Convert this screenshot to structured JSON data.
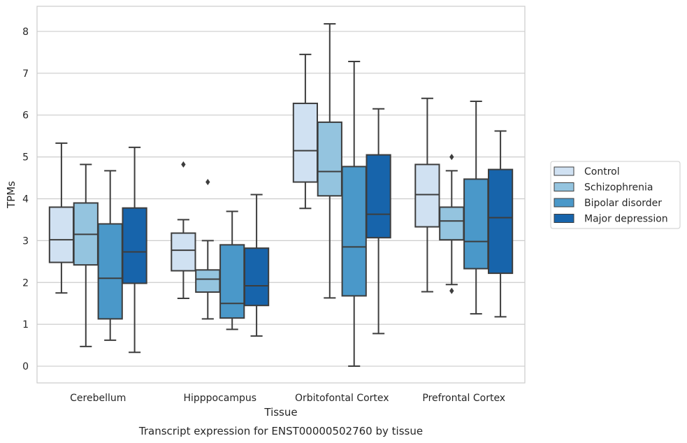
{
  "chart_data": {
    "type": "box",
    "title": "",
    "caption": "Transcript expression for ENST00000502760 by tissue",
    "xlabel": "Tissue",
    "ylabel": "TPMs",
    "ylim": [
      -0.4,
      8.6
    ],
    "yticks": [
      0,
      1,
      2,
      3,
      4,
      5,
      6,
      7,
      8
    ],
    "grid": "horizontal",
    "legend_position": "right",
    "categories": [
      "Cerebellum",
      "Hipppocampus",
      "Orbitofontal Cortex",
      "Prefrontal Cortex"
    ],
    "series": [
      {
        "name": "Control",
        "color": "#d0e1f2",
        "boxes": [
          {
            "whislo": 1.75,
            "q1": 2.48,
            "med": 3.02,
            "q3": 3.8,
            "whishi": 5.33,
            "fliers": []
          },
          {
            "whislo": 1.62,
            "q1": 2.28,
            "med": 2.77,
            "q3": 3.18,
            "whishi": 3.5,
            "fliers": [
              4.82
            ]
          },
          {
            "whislo": 3.77,
            "q1": 4.4,
            "med": 5.15,
            "q3": 6.28,
            "whishi": 7.45,
            "fliers": []
          },
          {
            "whislo": 1.78,
            "q1": 3.33,
            "med": 4.1,
            "q3": 4.82,
            "whishi": 6.4,
            "fliers": []
          }
        ]
      },
      {
        "name": "Schizophrenia",
        "color": "#94c4df",
        "boxes": [
          {
            "whislo": 0.47,
            "q1": 2.42,
            "med": 3.15,
            "q3": 3.9,
            "whishi": 4.82,
            "fliers": []
          },
          {
            "whislo": 1.13,
            "q1": 1.77,
            "med": 2.08,
            "q3": 2.3,
            "whishi": 3.0,
            "fliers": [
              4.4
            ]
          },
          {
            "whislo": 1.63,
            "q1": 4.07,
            "med": 4.65,
            "q3": 5.83,
            "whishi": 8.18,
            "fliers": []
          },
          {
            "whislo": 1.95,
            "q1": 3.02,
            "med": 3.47,
            "q3": 3.8,
            "whishi": 4.67,
            "fliers": [
              5.0,
              1.8
            ]
          }
        ]
      },
      {
        "name": "Bipolar disorder",
        "color": "#4a98c9",
        "boxes": [
          {
            "whislo": 0.62,
            "q1": 1.13,
            "med": 2.1,
            "q3": 3.4,
            "whishi": 4.67,
            "fliers": []
          },
          {
            "whislo": 0.88,
            "q1": 1.15,
            "med": 1.5,
            "q3": 2.9,
            "whishi": 3.7,
            "fliers": []
          },
          {
            "whislo": 0.0,
            "q1": 1.68,
            "med": 2.85,
            "q3": 4.77,
            "whishi": 7.28,
            "fliers": []
          },
          {
            "whislo": 1.25,
            "q1": 2.33,
            "med": 2.98,
            "q3": 4.47,
            "whishi": 6.33,
            "fliers": []
          }
        ]
      },
      {
        "name": "Major depression",
        "color": "#1764ab",
        "boxes": [
          {
            "whislo": 0.33,
            "q1": 1.98,
            "med": 2.73,
            "q3": 3.78,
            "whishi": 5.23,
            "fliers": []
          },
          {
            "whislo": 0.72,
            "q1": 1.45,
            "med": 1.92,
            "q3": 2.82,
            "whishi": 4.1,
            "fliers": []
          },
          {
            "whislo": 0.78,
            "q1": 3.07,
            "med": 3.63,
            "q3": 5.05,
            "whishi": 6.15,
            "fliers": []
          },
          {
            "whislo": 1.18,
            "q1": 2.22,
            "med": 3.55,
            "q3": 4.7,
            "whishi": 5.62,
            "fliers": []
          }
        ]
      }
    ]
  }
}
